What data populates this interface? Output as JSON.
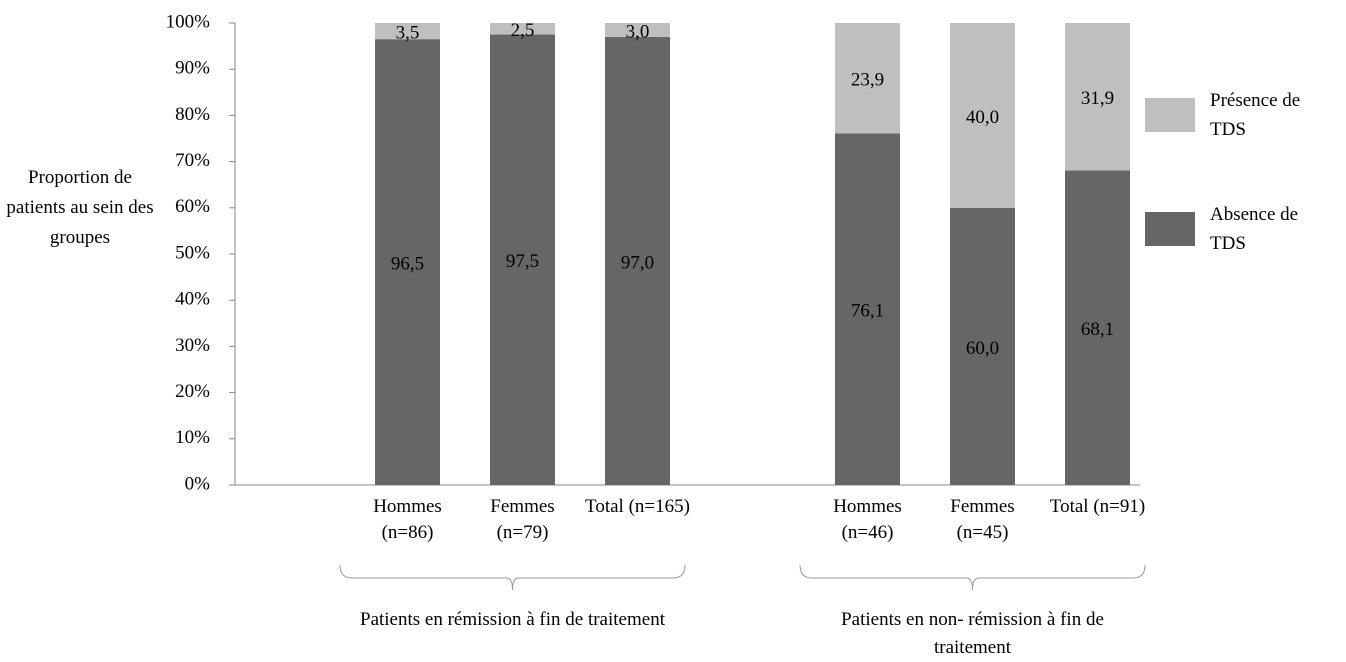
{
  "chart_data": {
    "type": "stacked_bar",
    "y_label": "Proportion de patients au sein des groupes",
    "categories": [
      null,
      "Hommes (n=86)",
      "Femmes (n=79)",
      "Total (n=165)",
      null,
      "Hommes (n=46)",
      "Femmes (n=45)",
      "Total (n=91)"
    ],
    "groups": [
      "Patients en rémission à fin de traitement",
      "Patients en non- rémission à fin de traitement"
    ],
    "series": [
      {
        "name": "Absence de TDS",
        "color": "#666666",
        "values": [
          null,
          96.5,
          97.5,
          97.0,
          null,
          76.1,
          60.0,
          68.1
        ],
        "value_labels": [
          null,
          "96,5",
          "97,5",
          "97,0",
          null,
          "76,1",
          "60,0",
          "68,1"
        ]
      },
      {
        "name": "Présence de TDS",
        "color": "#bfbfbf",
        "values": [
          null,
          3.5,
          2.5,
          3.0,
          null,
          23.9,
          40.0,
          31.9
        ],
        "value_labels": [
          null,
          "3,5",
          "2,5",
          "3,0",
          null,
          "23,9",
          "40,0",
          "31,9"
        ]
      }
    ],
    "ylim": [
      0,
      100
    ],
    "yticks": [
      {
        "value": 0,
        "label": "0%"
      },
      {
        "value": 10,
        "label": "10%"
      },
      {
        "value": 20,
        "label": "20%"
      },
      {
        "value": 30,
        "label": "30%"
      },
      {
        "value": 40,
        "label": "40%"
      },
      {
        "value": 50,
        "label": "50%"
      },
      {
        "value": 60,
        "label": "60%"
      },
      {
        "value": 70,
        "label": "70%"
      },
      {
        "value": 80,
        "label": "80%"
      },
      {
        "value": 90,
        "label": "90%"
      },
      {
        "value": 100,
        "label": "100%"
      }
    ],
    "grid": false
  }
}
